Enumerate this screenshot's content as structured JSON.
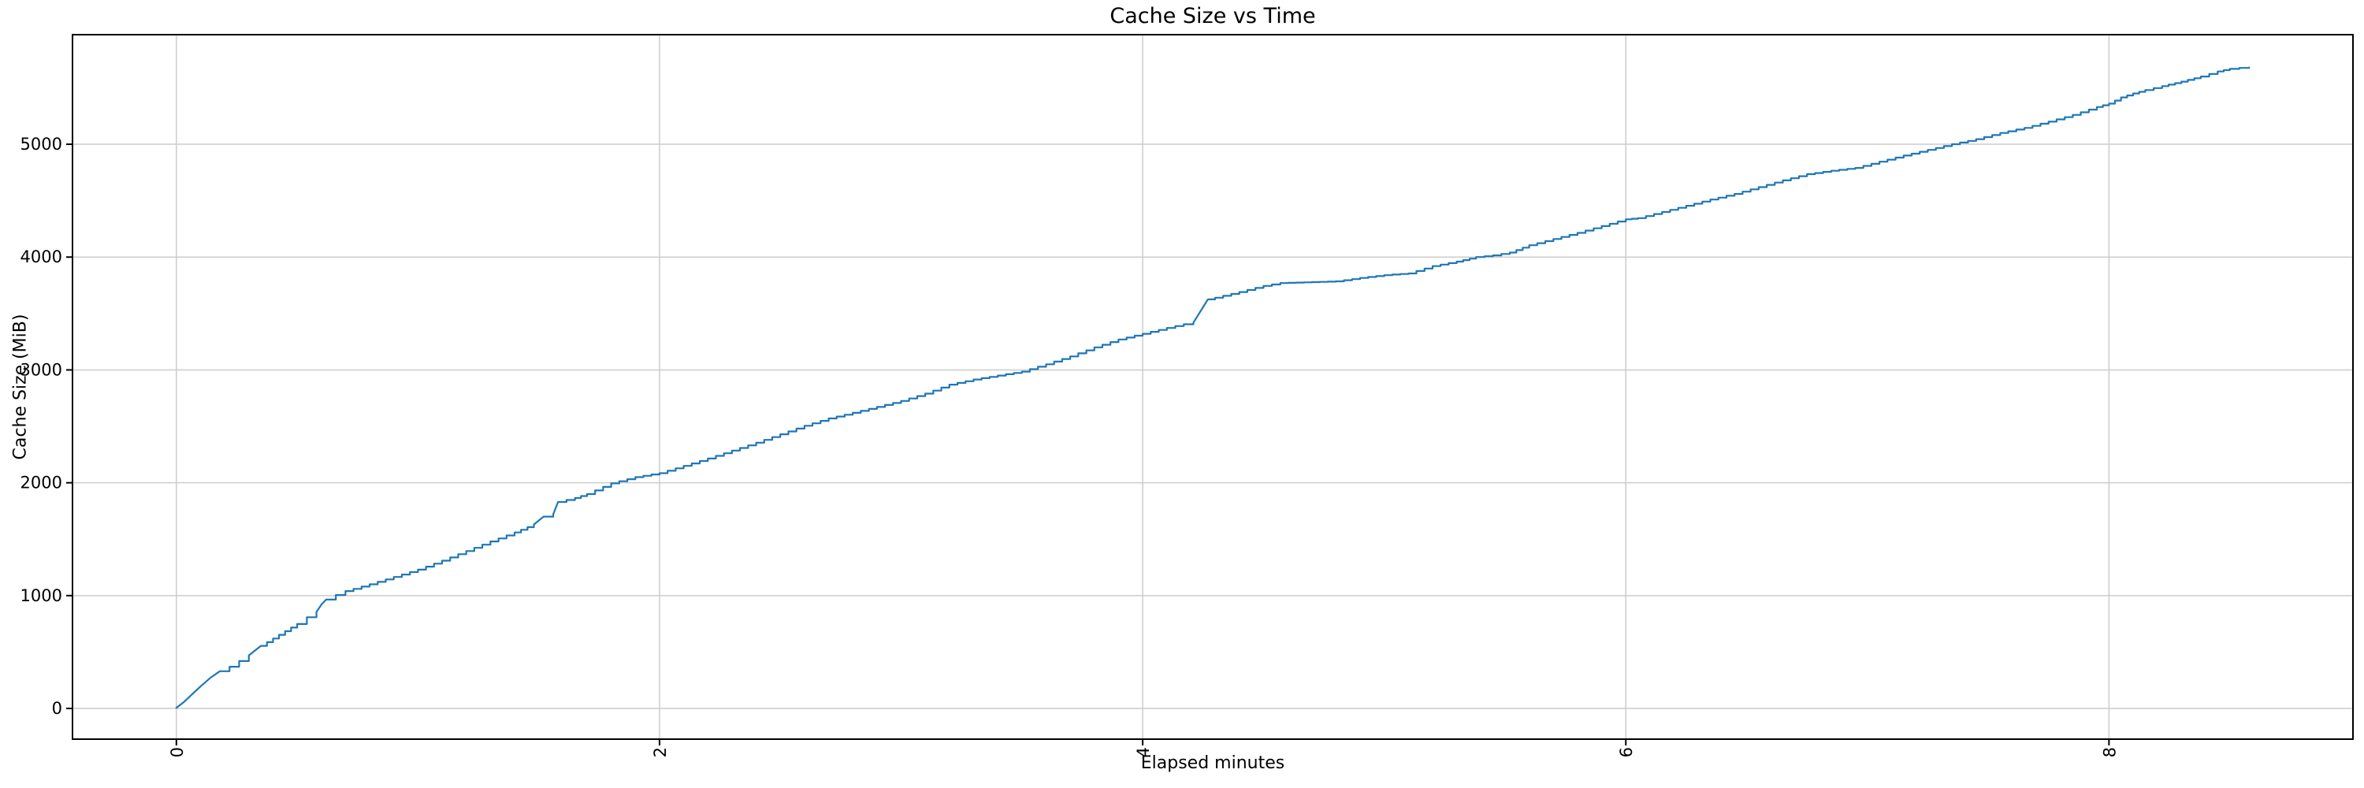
{
  "page": {
    "background": "#ffffff"
  },
  "chart_data": {
    "type": "line",
    "title": "Cache Size vs Time",
    "xlabel": "Elapsed minutes",
    "ylabel": "Cache Size (MiB)",
    "grid": true,
    "legend": "none",
    "x_tick_rotation": 90,
    "x_ticks": [
      0,
      2,
      4,
      6,
      8
    ],
    "y_ticks": [
      0,
      1000,
      2000,
      3000,
      4000,
      5000
    ],
    "xlim": [
      -0.43,
      9.01
    ],
    "ylim": [
      -272,
      5971
    ],
    "line_color": "#1f77b4",
    "colors": {
      "grid": "#cccccc",
      "axis": "#000000",
      "text": "#000000",
      "background": "#ffffff"
    },
    "series": [
      {
        "name": "cache_size",
        "x": [
          0.0,
          0.03,
          0.06,
          0.1,
          0.14,
          0.18,
          0.22,
          0.26,
          0.3,
          0.35,
          0.4,
          0.45,
          0.5,
          0.54,
          0.58,
          0.6,
          0.62,
          0.66,
          0.7,
          0.8,
          0.9,
          1.0,
          1.1,
          1.2,
          1.3,
          1.4,
          1.48,
          1.52,
          1.56,
          1.58,
          1.65,
          1.7,
          1.8,
          1.9,
          2.0,
          2.1,
          2.2,
          2.3,
          2.4,
          2.5,
          2.6,
          2.7,
          2.8,
          2.9,
          3.0,
          3.1,
          3.2,
          3.3,
          3.4,
          3.5,
          3.6,
          3.7,
          3.8,
          3.9,
          4.0,
          4.1,
          4.17,
          4.21,
          4.27,
          4.3,
          4.4,
          4.5,
          4.57,
          4.7,
          4.8,
          4.9,
          5.0,
          5.1,
          5.2,
          5.3,
          5.38,
          5.45,
          5.52,
          5.6,
          5.7,
          5.8,
          5.9,
          6.0,
          6.05,
          6.15,
          6.25,
          6.35,
          6.45,
          6.55,
          6.65,
          6.75,
          6.85,
          6.95,
          7.05,
          7.15,
          7.25,
          7.35,
          7.45,
          7.55,
          7.65,
          7.75,
          7.85,
          7.95,
          8.0,
          8.05,
          8.1,
          8.15,
          8.22,
          8.3,
          8.38,
          8.45,
          8.5,
          8.54,
          8.58
        ],
        "y": [
          5,
          55,
          115,
          195,
          270,
          330,
          370,
          420,
          470,
          555,
          620,
          685,
          748,
          808,
          855,
          920,
          965,
          1005,
          1040,
          1100,
          1165,
          1230,
          1310,
          1395,
          1480,
          1560,
          1630,
          1700,
          1720,
          1830,
          1865,
          1900,
          1995,
          2050,
          2085,
          2150,
          2215,
          2285,
          2355,
          2430,
          2505,
          2570,
          2620,
          2672,
          2725,
          2790,
          2870,
          2915,
          2950,
          2985,
          3050,
          3120,
          3200,
          3270,
          3320,
          3372,
          3405,
          3420,
          3625,
          3640,
          3690,
          3745,
          3770,
          3778,
          3785,
          3815,
          3840,
          3855,
          3920,
          3960,
          4000,
          4015,
          4040,
          4105,
          4160,
          4215,
          4275,
          4335,
          4345,
          4400,
          4455,
          4510,
          4560,
          4620,
          4680,
          4735,
          4765,
          4790,
          4845,
          4900,
          4950,
          5000,
          5045,
          5100,
          5145,
          5200,
          5260,
          5330,
          5360,
          5415,
          5450,
          5480,
          5515,
          5555,
          5600,
          5645,
          5668,
          5676,
          5680
        ]
      }
    ]
  }
}
